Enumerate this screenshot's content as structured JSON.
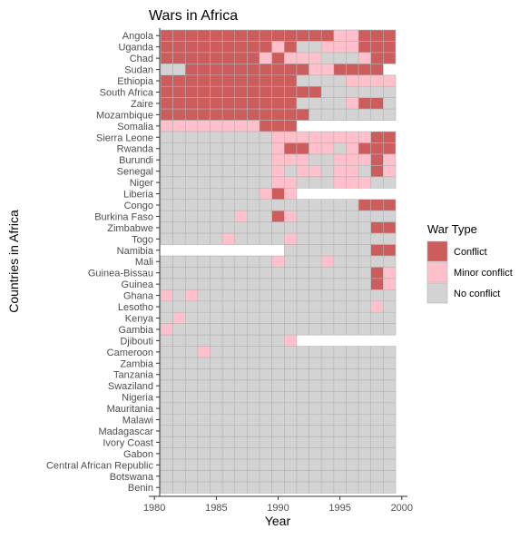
{
  "chart_data": {
    "type": "heatmap",
    "title": "Wars in Africa",
    "xlabel": "Year",
    "ylabel": "Countries in Africa",
    "xlim": [
      1980.5,
      1999.5
    ],
    "x_ticks": [
      1980,
      1985,
      1990,
      1995,
      2000
    ],
    "years": [
      1981,
      1982,
      1983,
      1984,
      1985,
      1986,
      1987,
      1988,
      1989,
      1990,
      1991,
      1992,
      1993,
      1994,
      1995,
      1996,
      1997,
      1998,
      1999
    ],
    "status_key": {
      "C": "Conflict",
      "M": "Minor conflict",
      "N": "No conflict",
      "-": "no data"
    },
    "legend": {
      "title": "War Type",
      "placement": "right",
      "items": [
        {
          "key": "C",
          "label": "Conflict",
          "color": "#cd5c5c"
        },
        {
          "key": "M",
          "label": "Minor conflict",
          "color": "#ffc0cb"
        },
        {
          "key": "N",
          "label": "No conflict",
          "color": "#d3d3d3"
        }
      ]
    },
    "countries": [
      {
        "name": "Angola",
        "status": "CCCCCCCCCCCCCCMMCCC"
      },
      {
        "name": "Uganda",
        "status": "CCCCCCCCCMCNNMMMCCC"
      },
      {
        "name": "Chad",
        "status": "CCCCCCCCMCMMMNNNMCC"
      },
      {
        "name": "Sudan",
        "status": "NNCCCCCCCCCCMMCCCC-"
      },
      {
        "name": "Ethiopia",
        "status": "CCCCCCCCCCCNNNNMMMM"
      },
      {
        "name": "South Africa",
        "status": "CCCCCCCCCCCCCNNNNNN"
      },
      {
        "name": "Zaire",
        "status": "CCCCCCCCCCCNNNNMCCN"
      },
      {
        "name": "Mozambique",
        "status": "CCCCCCCCCCCCNNNNNNN"
      },
      {
        "name": "Somalia",
        "status": "MMMMMMMMCCC--------"
      },
      {
        "name": "Sierra Leone",
        "status": "NNNNNNNNNMMMMMMMMCC"
      },
      {
        "name": "Rwanda",
        "status": "NNNNNNNNNMCCMMNMCCC"
      },
      {
        "name": "Burundi",
        "status": "NNNNNNNNNMMMNNMMMCM"
      },
      {
        "name": "Senegal",
        "status": "NNNNNNNNNMNMMNMMNCM"
      },
      {
        "name": "Niger",
        "status": "NNNNNNNNNMMNNNMMMNN"
      },
      {
        "name": "Liberia",
        "status": "NNNNNNNNMCM--------"
      },
      {
        "name": "Congo",
        "status": "NNNNNNNNNNNNNNNNCCC"
      },
      {
        "name": "Burkina Faso",
        "status": "NNNNNNMNNCMNNNNNNNN"
      },
      {
        "name": "Zimbabwe",
        "status": "NNNNNNNNNNNNNNNNNCC"
      },
      {
        "name": "Togo",
        "status": "NNNNNMNNNNMNNNNNNNN"
      },
      {
        "name": "Namibia",
        "status": "----------NNNNNNNCC"
      },
      {
        "name": "Mali",
        "status": "NNNNNNNNNMNNNMNNNNN"
      },
      {
        "name": "Guinea-Bissau",
        "status": "NNNNNNNNNNNNNNNNNCM"
      },
      {
        "name": "Guinea",
        "status": "NNNNNNNNNNNNNNNNNCM"
      },
      {
        "name": "Ghana",
        "status": "MNMNNNNNNNNNNNNNNNN"
      },
      {
        "name": "Lesotho",
        "status": "NNNNNNNNNNNNNNNNNMN"
      },
      {
        "name": "Kenya",
        "status": "NMNNNNNNNNNNNNNNNNN"
      },
      {
        "name": "Gambia",
        "status": "MNNNNNNNNNNNNNNNNNN"
      },
      {
        "name": "Djibouti",
        "status": "NNNNNNNNNNM--------"
      },
      {
        "name": "Cameroon",
        "status": "NNNMNNNNNNNNNNNNNNN"
      },
      {
        "name": "Zambia",
        "status": "NNNNNNNNNNNNNNNNNNN"
      },
      {
        "name": "Tanzania",
        "status": "NNNNNNNNNNNNNNNNNNN"
      },
      {
        "name": "Swaziland",
        "status": "NNNNNNNNNNNNNNNNNNN"
      },
      {
        "name": "Nigeria",
        "status": "NNNNNNNNNNNNNNNNNNN"
      },
      {
        "name": "Mauritania",
        "status": "NNNNNNNNNNNNNNNNNNN"
      },
      {
        "name": "Malawi",
        "status": "NNNNNNNNNNNNNNNNNNN"
      },
      {
        "name": "Madagascar",
        "status": "NNNNNNNNNNNNNNNNNNN"
      },
      {
        "name": "Ivory Coast",
        "status": "NNNNNNNNNNNNNNNNNNN"
      },
      {
        "name": "Gabon",
        "status": "NNNNNNNNNNNNNNNNNNN"
      },
      {
        "name": "Central African Republic",
        "status": "NNNNNNNNNNNNNNNNNNN"
      },
      {
        "name": "Botswana",
        "status": "NNNNNNNNNNNNNNNNNNN"
      },
      {
        "name": "Benin",
        "status": "NNNNNNNNNNNNNNNNNNN"
      }
    ]
  }
}
